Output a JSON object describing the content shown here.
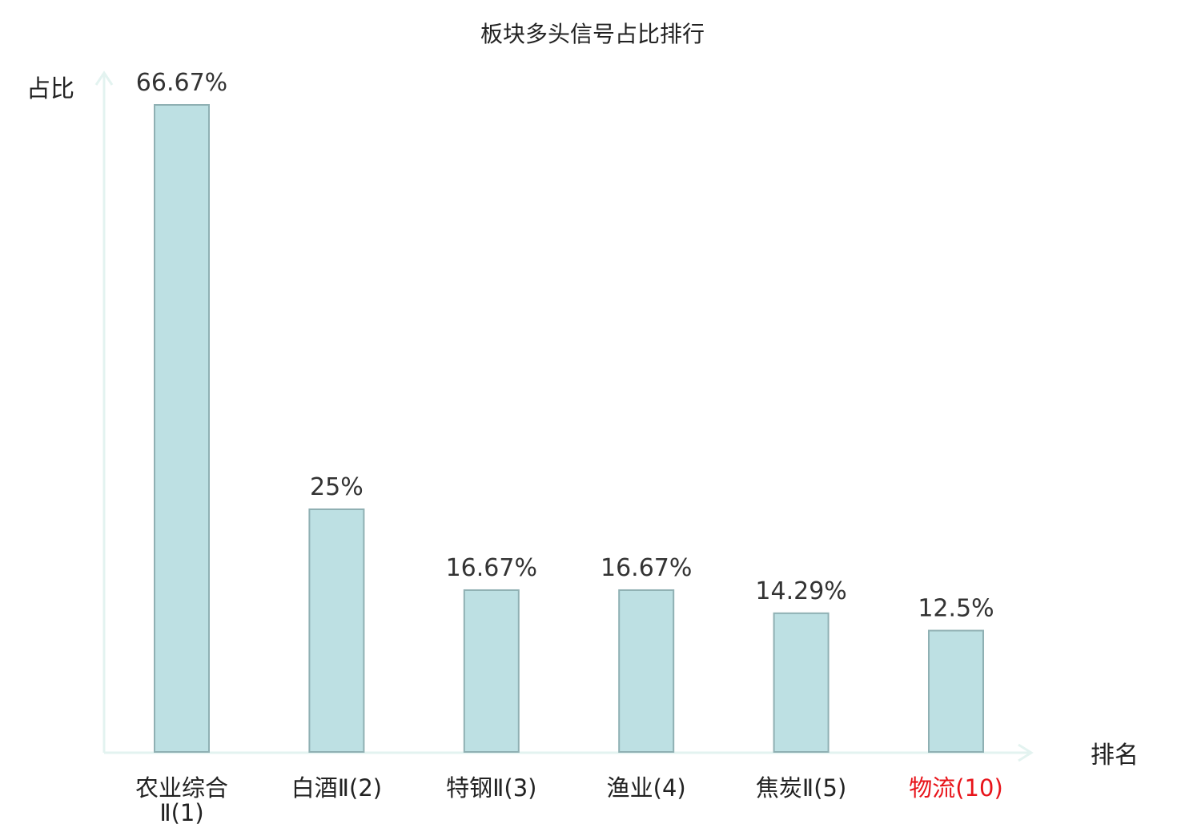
{
  "chart_data": {
    "type": "bar",
    "title": "板块多头信号占比排行",
    "xlabel": "排名",
    "ylabel": "占比",
    "ylim": [
      0,
      70
    ],
    "grid": false,
    "colors": {
      "bar_fill": "#bde0e3",
      "bar_stroke": "#8fb0b3",
      "axis": "#e3f3f0",
      "highlight_text": "#e8141a",
      "normal_text": "#222222"
    },
    "categories": [
      {
        "name": "农业综合",
        "suffix": "Ⅱ",
        "rank": "(1)",
        "highlight": false
      },
      {
        "name": "白酒",
        "suffix": "Ⅱ",
        "rank": "(2)",
        "highlight": false
      },
      {
        "name": "特钢",
        "suffix": "Ⅱ",
        "rank": "(3)",
        "highlight": false
      },
      {
        "name": "渔业",
        "suffix": "",
        "rank": "(4)",
        "highlight": false
      },
      {
        "name": "焦炭",
        "suffix": "Ⅱ",
        "rank": "(5)",
        "highlight": false
      },
      {
        "name": "物流",
        "suffix": "",
        "rank": "(10)",
        "highlight": true
      }
    ],
    "values": [
      66.67,
      25,
      16.67,
      16.67,
      14.29,
      12.5
    ],
    "value_labels": [
      "66.67%",
      "25%",
      "16.67%",
      "16.67%",
      "14.29%",
      "12.5%"
    ]
  }
}
